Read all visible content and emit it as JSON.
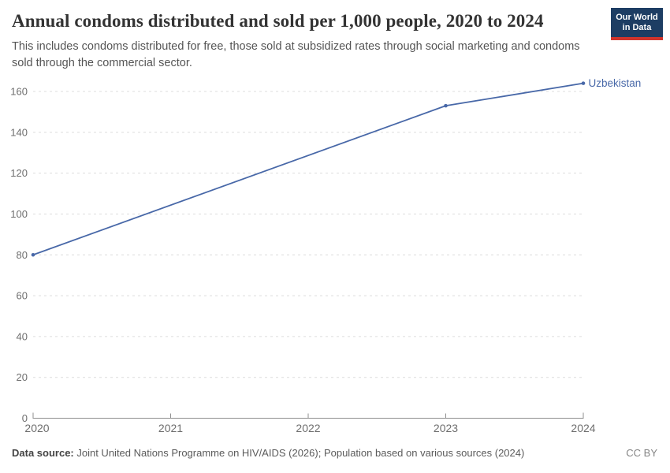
{
  "header": {
    "title": "Annual condoms distributed and sold per 1,000 people, 2020 to 2024",
    "subtitle": "This includes condoms distributed for free, those sold at subsidized rates through social marketing and condoms sold through the commercial sector.",
    "logo": {
      "line1": "Our World",
      "line2": "in Data"
    }
  },
  "chart_data": {
    "type": "line",
    "title": "Annual condoms distributed and sold per 1,000 people, 2020 to 2024",
    "xlabel": "",
    "ylabel": "",
    "xlim": [
      2020,
      2024
    ],
    "ylim": [
      0,
      160
    ],
    "grid": true,
    "x_ticks": [
      2020,
      2021,
      2022,
      2023,
      2024
    ],
    "y_ticks": [
      0,
      20,
      40,
      60,
      80,
      100,
      120,
      140,
      160
    ],
    "legend_position": "end-of-line-label",
    "series": [
      {
        "name": "Uzbekistan",
        "color": "#4868a8",
        "points": [
          {
            "x": 2020,
            "y": 80
          },
          {
            "x": 2023,
            "y": 153
          },
          {
            "x": 2024,
            "y": 164
          }
        ]
      }
    ]
  },
  "colors": {
    "line_accent": "#4868a8",
    "gridline": "#dcdcdc",
    "axis": "#8f8f8f",
    "tick_label": "#6e6e6e",
    "logo_bg": "#1d3d63",
    "logo_stripe": "#d0342c"
  },
  "footer": {
    "source_label": "Data source:",
    "source_text": " Joint United Nations Programme on HIV/AIDS (2026); Population based on various sources (2024)",
    "license": "CC BY"
  }
}
